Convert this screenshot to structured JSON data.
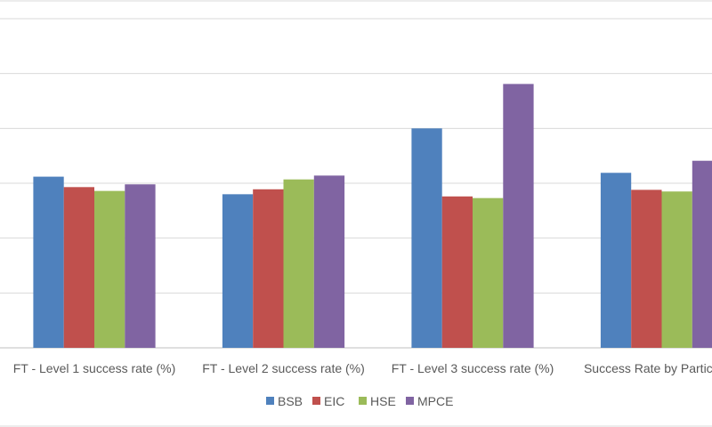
{
  "chart_data": {
    "type": "bar",
    "categories": [
      "FT - Level 1 success rate (%)",
      "FT - Level 2 success rate (%)",
      "FT - Level 3 success rate (%)",
      "Success Rate by Participant"
    ],
    "series": [
      {
        "name": "BSB",
        "color": "#4f81bd",
        "values": [
          62.4,
          56.0,
          80.0,
          63.8
        ]
      },
      {
        "name": "EIC",
        "color": "#c0504d",
        "values": [
          58.6,
          57.8,
          55.2,
          57.6
        ]
      },
      {
        "name": "HSE",
        "color": "#9bbb59",
        "values": [
          57.2,
          61.4,
          54.6,
          57.0
        ]
      },
      {
        "name": "MPCE",
        "color": "#8064a2",
        "values": [
          59.6,
          62.8,
          96.2,
          68.2
        ]
      }
    ],
    "title": "",
    "xlabel": "",
    "ylabel": "",
    "ylim": [
      0,
      120
    ],
    "grid": true,
    "legend": "bottom"
  }
}
